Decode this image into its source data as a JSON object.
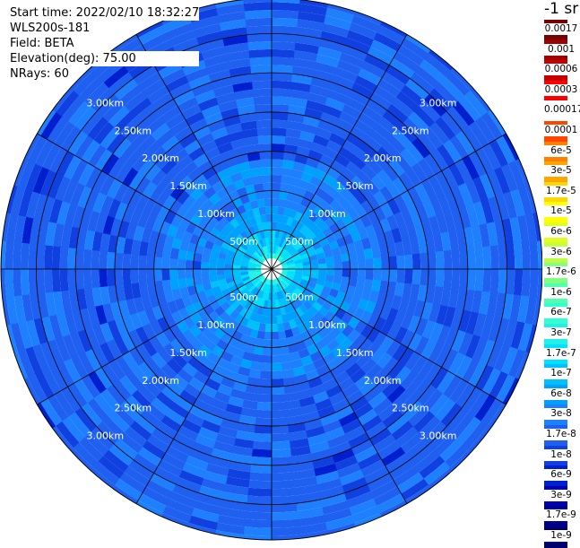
{
  "header": {
    "start_time": "Start time: 2022/02/10 18:32:27",
    "instrument": "WLS200s-181",
    "field": "Field: BETA",
    "elevation": "Elevation(deg): 75.00",
    "nrays": "NRays: 60"
  },
  "colorbar": {
    "unit": "-1 sr",
    "labels": [
      "0.0017",
      "0.001",
      "0.0006",
      "0.0003",
      "0.00017",
      "0.0001",
      "6e-5",
      "3e-5",
      "1.7e-5",
      "1e-5",
      "6e-6",
      "3e-6",
      "1.7e-6",
      "1e-6",
      "6e-7",
      "3e-7",
      "1.7e-7",
      "1e-7",
      "6e-8",
      "3e-8",
      "1.7e-8",
      "1e-8",
      "6e-9",
      "3e-9",
      "1.7e-9",
      "1e-9"
    ],
    "colors": [
      "#7a0000",
      "#a00000",
      "#c80000",
      "#ff0000",
      "#ffffff",
      "#ff4500",
      "#ff7f00",
      "#ffa500",
      "#ffd700",
      "#ffff00",
      "#e0ff20",
      "#c0ff40",
      "#80ff80",
      "#50ffb0",
      "#30ffd0",
      "#20f0e8",
      "#00e0ff",
      "#00c0ff",
      "#00a0ff",
      "#1e80ff",
      "#2060f0",
      "#1040e0",
      "#0020d0",
      "#0000b0",
      "#000090",
      "#000070"
    ]
  },
  "chart_data": {
    "type": "heatmap",
    "projection": "polar (PPI)",
    "field": "BETA",
    "nrays": 60,
    "range_rings_km": [
      0.5,
      1.0,
      1.5,
      2.0,
      2.5,
      3.0
    ],
    "ring_labels": [
      "500m",
      "1.00km",
      "1.50km",
      "2.00km",
      "2.50km",
      "3.00km"
    ],
    "spoke_angles_deg": [
      0,
      30,
      60,
      90,
      120,
      150,
      180,
      210,
      240,
      270,
      300,
      330
    ],
    "max_range_km": 3.45,
    "gate_km": 0.1,
    "radial_profile": {
      "range_km": [
        0.05,
        0.15,
        0.25,
        0.35,
        0.45,
        0.55,
        0.7,
        0.9,
        1.1,
        1.3,
        1.5,
        1.7,
        1.9,
        2.1,
        2.3,
        2.5,
        2.7,
        2.9,
        3.1,
        3.3
      ],
      "beta_color_index": [
        14,
        15,
        16,
        17,
        17,
        18,
        18,
        19,
        19,
        19,
        20,
        20,
        20,
        20,
        20,
        20,
        20,
        20,
        20,
        20
      ]
    }
  }
}
